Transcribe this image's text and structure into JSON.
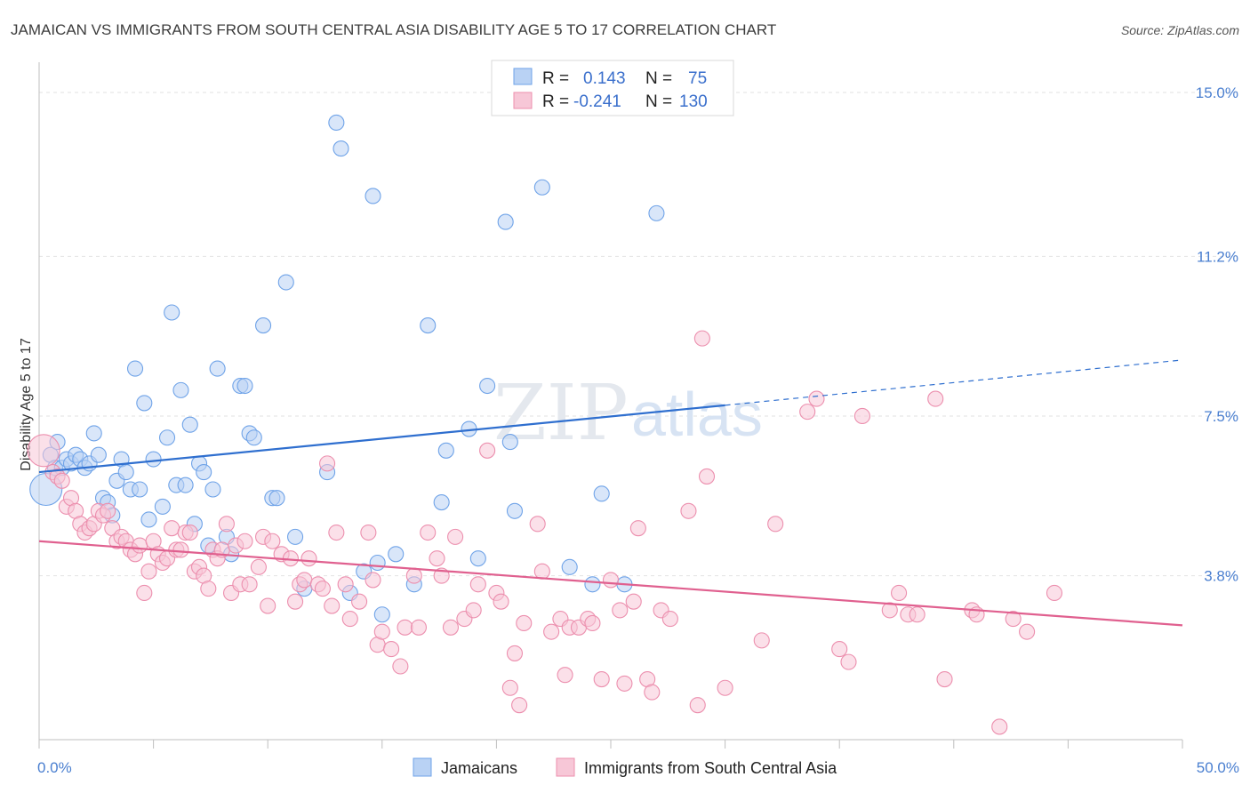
{
  "chart_data": {
    "type": "scatter",
    "title": "JAMAICAN VS IMMIGRANTS FROM SOUTH CENTRAL ASIA DISABILITY AGE 5 TO 17 CORRELATION CHART",
    "source": "Source: ZipAtlas.com",
    "ylabel": "Disability Age 5 to 17",
    "xlim": [
      0,
      50
    ],
    "ylim": [
      0,
      15.7
    ],
    "y_ticks": [
      {
        "value": 3.8,
        "label": "3.8%"
      },
      {
        "value": 7.5,
        "label": "7.5%"
      },
      {
        "value": 11.2,
        "label": "11.2%"
      },
      {
        "value": 15.0,
        "label": "15.0%"
      }
    ],
    "x_tick_labels": {
      "min": "0.0%",
      "max": "50.0%"
    },
    "grid": true,
    "legend": {
      "placement": "top-center",
      "rows": [
        {
          "r_label": "R =",
          "r_value": "0.143",
          "n_label": "N =",
          "n_value": "75"
        },
        {
          "r_label": "R =",
          "r_value": "-0.241",
          "n_label": "N =",
          "n_value": "130"
        }
      ]
    },
    "watermark": {
      "zip": "ZIP",
      "atlas": "atlas"
    },
    "series": [
      {
        "name": "Jamaicans",
        "color": "#6fa3e8",
        "fill": "#b9d2f4",
        "line_color": "#2f6fcf",
        "trend": {
          "x0": 0,
          "y0": 6.2,
          "x1": 30,
          "y1": 7.75,
          "dash_x1": 50,
          "dash_y1": 8.8
        },
        "points": [
          [
            0.3,
            5.8
          ],
          [
            0.5,
            6.6
          ],
          [
            0.7,
            6.3
          ],
          [
            0.8,
            6.9
          ],
          [
            1.0,
            6.3
          ],
          [
            1.2,
            6.5
          ],
          [
            1.4,
            6.4
          ],
          [
            1.6,
            6.6
          ],
          [
            1.8,
            6.5
          ],
          [
            2.0,
            6.3
          ],
          [
            2.2,
            6.4
          ],
          [
            2.4,
            7.1
          ],
          [
            2.6,
            6.6
          ],
          [
            2.8,
            5.6
          ],
          [
            3.0,
            5.5
          ],
          [
            3.2,
            5.2
          ],
          [
            3.4,
            6.0
          ],
          [
            3.6,
            6.5
          ],
          [
            3.8,
            6.2
          ],
          [
            4.0,
            5.8
          ],
          [
            4.2,
            8.6
          ],
          [
            4.4,
            5.8
          ],
          [
            4.6,
            7.8
          ],
          [
            4.8,
            5.1
          ],
          [
            5.0,
            6.5
          ],
          [
            5.4,
            5.4
          ],
          [
            5.6,
            7.0
          ],
          [
            5.8,
            9.9
          ],
          [
            6.0,
            5.9
          ],
          [
            6.2,
            8.1
          ],
          [
            6.4,
            5.9
          ],
          [
            6.6,
            7.3
          ],
          [
            6.8,
            5.0
          ],
          [
            7.0,
            6.4
          ],
          [
            7.2,
            6.2
          ],
          [
            7.4,
            4.5
          ],
          [
            7.6,
            5.8
          ],
          [
            7.8,
            8.6
          ],
          [
            8.2,
            4.7
          ],
          [
            8.4,
            4.3
          ],
          [
            8.8,
            8.2
          ],
          [
            9.0,
            8.2
          ],
          [
            9.2,
            7.1
          ],
          [
            9.4,
            7.0
          ],
          [
            9.8,
            9.6
          ],
          [
            10.2,
            5.6
          ],
          [
            10.4,
            5.6
          ],
          [
            10.8,
            10.6
          ],
          [
            11.2,
            4.7
          ],
          [
            11.6,
            3.5
          ],
          [
            12.6,
            6.2
          ],
          [
            13.0,
            14.3
          ],
          [
            13.2,
            13.7
          ],
          [
            13.6,
            3.4
          ],
          [
            14.2,
            3.9
          ],
          [
            14.6,
            12.6
          ],
          [
            14.8,
            4.1
          ],
          [
            15.0,
            2.9
          ],
          [
            15.6,
            4.3
          ],
          [
            16.4,
            3.6
          ],
          [
            17.0,
            9.6
          ],
          [
            17.6,
            5.5
          ],
          [
            17.8,
            6.7
          ],
          [
            18.8,
            7.2
          ],
          [
            19.2,
            4.2
          ],
          [
            19.6,
            8.2
          ],
          [
            20.4,
            12.0
          ],
          [
            20.6,
            6.9
          ],
          [
            20.8,
            5.3
          ],
          [
            22.0,
            12.8
          ],
          [
            23.2,
            4.0
          ],
          [
            24.2,
            3.6
          ],
          [
            24.6,
            5.7
          ],
          [
            25.6,
            3.6
          ],
          [
            27.0,
            12.2
          ]
        ]
      },
      {
        "name": "Immigrants from South Central Asia",
        "color": "#ec8fae",
        "fill": "#f7c7d7",
        "line_color": "#e0608f",
        "trend": {
          "x0": 0,
          "y0": 4.6,
          "x1": 50,
          "y1": 2.65
        },
        "points": [
          [
            0.2,
            6.7
          ],
          [
            0.6,
            6.2
          ],
          [
            0.8,
            6.1
          ],
          [
            1.0,
            6.0
          ],
          [
            1.2,
            5.4
          ],
          [
            1.4,
            5.6
          ],
          [
            1.6,
            5.3
          ],
          [
            1.8,
            5.0
          ],
          [
            2.0,
            4.8
          ],
          [
            2.2,
            4.9
          ],
          [
            2.4,
            5.0
          ],
          [
            2.6,
            5.3
          ],
          [
            2.8,
            5.2
          ],
          [
            3.0,
            5.3
          ],
          [
            3.2,
            4.9
          ],
          [
            3.4,
            4.6
          ],
          [
            3.6,
            4.7
          ],
          [
            3.8,
            4.6
          ],
          [
            4.0,
            4.4
          ],
          [
            4.2,
            4.3
          ],
          [
            4.4,
            4.5
          ],
          [
            4.6,
            3.4
          ],
          [
            4.8,
            3.9
          ],
          [
            5.0,
            4.6
          ],
          [
            5.2,
            4.3
          ],
          [
            5.4,
            4.1
          ],
          [
            5.6,
            4.2
          ],
          [
            5.8,
            4.9
          ],
          [
            6.0,
            4.4
          ],
          [
            6.2,
            4.4
          ],
          [
            6.4,
            4.8
          ],
          [
            6.6,
            4.8
          ],
          [
            6.8,
            3.9
          ],
          [
            7.0,
            4.0
          ],
          [
            7.2,
            3.8
          ],
          [
            7.4,
            3.5
          ],
          [
            7.6,
            4.4
          ],
          [
            7.8,
            4.2
          ],
          [
            8.0,
            4.4
          ],
          [
            8.2,
            5.0
          ],
          [
            8.4,
            3.4
          ],
          [
            8.6,
            4.5
          ],
          [
            8.8,
            3.6
          ],
          [
            9.0,
            4.6
          ],
          [
            9.2,
            3.6
          ],
          [
            9.6,
            4.0
          ],
          [
            9.8,
            4.7
          ],
          [
            10.0,
            3.1
          ],
          [
            10.2,
            4.6
          ],
          [
            10.6,
            4.3
          ],
          [
            11.0,
            4.2
          ],
          [
            11.2,
            3.2
          ],
          [
            11.4,
            3.6
          ],
          [
            11.6,
            3.7
          ],
          [
            11.8,
            4.2
          ],
          [
            12.2,
            3.6
          ],
          [
            12.4,
            3.5
          ],
          [
            12.6,
            6.4
          ],
          [
            12.8,
            3.1
          ],
          [
            13.0,
            4.8
          ],
          [
            13.4,
            3.6
          ],
          [
            13.6,
            2.8
          ],
          [
            14.0,
            3.2
          ],
          [
            14.4,
            4.8
          ],
          [
            14.6,
            3.7
          ],
          [
            14.8,
            2.2
          ],
          [
            15.0,
            2.5
          ],
          [
            15.4,
            2.1
          ],
          [
            15.8,
            1.7
          ],
          [
            16.0,
            2.6
          ],
          [
            16.4,
            3.8
          ],
          [
            16.6,
            2.6
          ],
          [
            17.0,
            4.8
          ],
          [
            17.4,
            4.2
          ],
          [
            17.6,
            3.8
          ],
          [
            18.0,
            2.6
          ],
          [
            18.2,
            4.7
          ],
          [
            18.6,
            2.8
          ],
          [
            19.0,
            3.0
          ],
          [
            19.2,
            3.6
          ],
          [
            19.6,
            6.7
          ],
          [
            20.0,
            3.4
          ],
          [
            20.2,
            3.2
          ],
          [
            20.6,
            1.2
          ],
          [
            20.8,
            2.0
          ],
          [
            21.0,
            0.8
          ],
          [
            21.2,
            2.7
          ],
          [
            21.8,
            5.0
          ],
          [
            22.0,
            3.9
          ],
          [
            22.4,
            2.5
          ],
          [
            22.8,
            2.8
          ],
          [
            23.0,
            1.5
          ],
          [
            23.2,
            2.6
          ],
          [
            23.6,
            2.6
          ],
          [
            24.0,
            2.8
          ],
          [
            24.2,
            2.7
          ],
          [
            24.6,
            1.4
          ],
          [
            25.0,
            3.7
          ],
          [
            25.4,
            3.0
          ],
          [
            25.6,
            1.3
          ],
          [
            26.0,
            3.2
          ],
          [
            26.2,
            4.9
          ],
          [
            26.6,
            1.4
          ],
          [
            26.8,
            1.1
          ],
          [
            27.2,
            3.0
          ],
          [
            27.6,
            2.8
          ],
          [
            28.4,
            5.3
          ],
          [
            28.8,
            0.8
          ],
          [
            29.0,
            9.3
          ],
          [
            29.2,
            6.1
          ],
          [
            30.0,
            1.2
          ],
          [
            31.6,
            2.3
          ],
          [
            32.2,
            5.0
          ],
          [
            33.6,
            7.6
          ],
          [
            34.0,
            7.9
          ],
          [
            35.0,
            2.1
          ],
          [
            35.4,
            1.8
          ],
          [
            36.0,
            7.5
          ],
          [
            37.2,
            3.0
          ],
          [
            37.6,
            3.4
          ],
          [
            38.0,
            2.9
          ],
          [
            38.4,
            2.9
          ],
          [
            39.2,
            7.9
          ],
          [
            39.6,
            1.4
          ],
          [
            40.8,
            3.0
          ],
          [
            41.0,
            2.9
          ],
          [
            42.0,
            0.3
          ],
          [
            42.6,
            2.8
          ],
          [
            43.2,
            2.5
          ],
          [
            44.4,
            3.4
          ]
        ]
      }
    ]
  }
}
